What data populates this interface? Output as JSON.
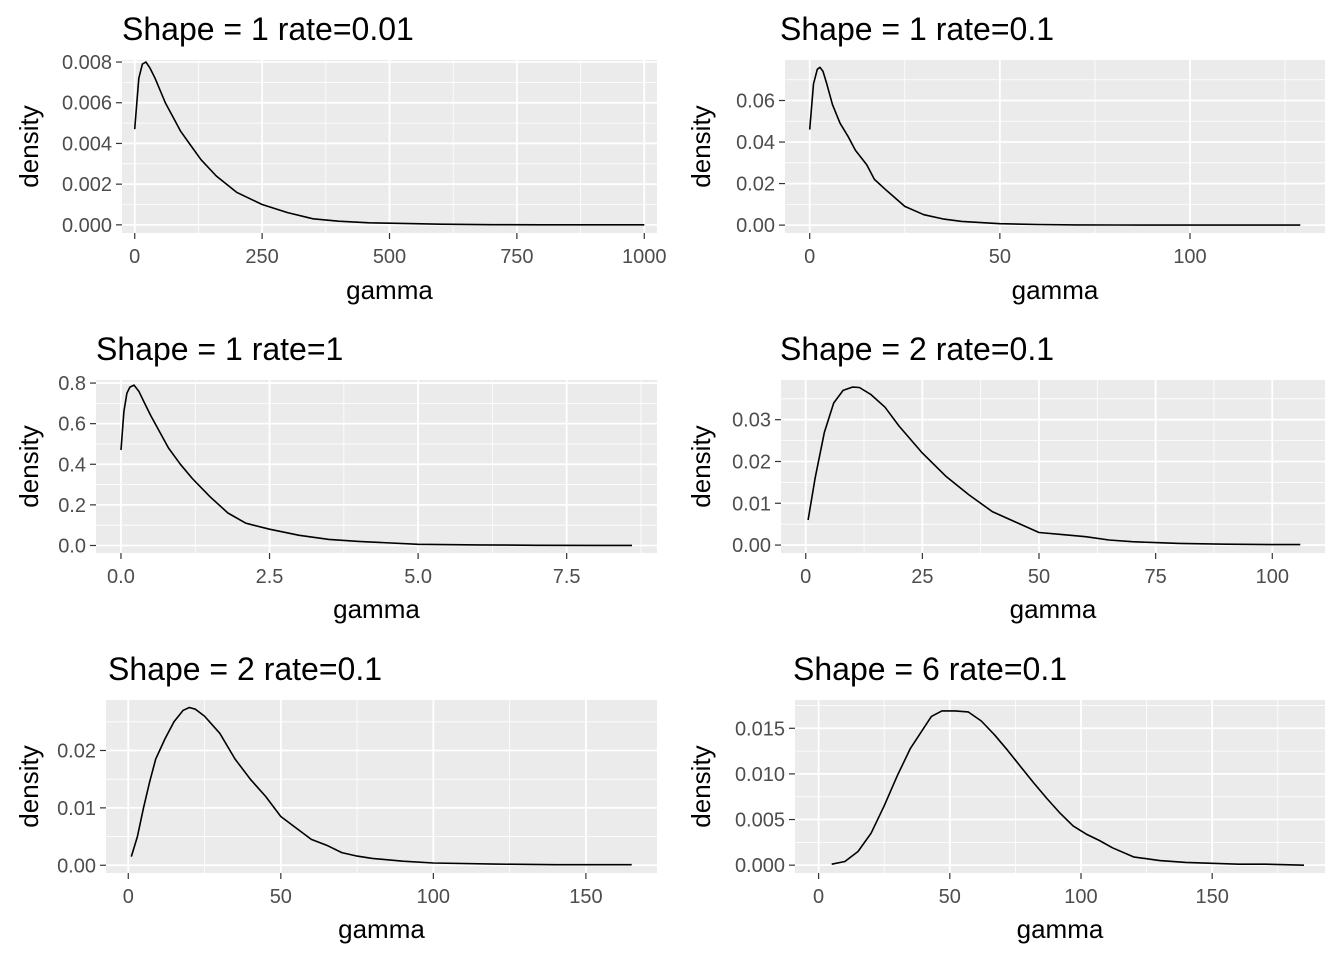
{
  "chart_data": [
    {
      "type": "line",
      "title": "Shape = 1 rate=0.01",
      "xlabel": "gamma",
      "ylabel": "density",
      "xlim": [
        -25,
        1025
      ],
      "ylim": [
        -0.0004,
        0.0081
      ],
      "xticks": [
        0,
        250,
        500,
        750,
        1000
      ],
      "xtick_labels": [
        "0",
        "250",
        "500",
        "750",
        "1000"
      ],
      "yticks": [
        0,
        0.002,
        0.004,
        0.006,
        0.008
      ],
      "ytick_labels": [
        "0.000",
        "0.002",
        "0.004",
        "0.006",
        "0.008"
      ],
      "grid": true,
      "series": [
        {
          "x": [
            0,
            8,
            15,
            22,
            30,
            40,
            50,
            60,
            75,
            90,
            110,
            130,
            160,
            200,
            250,
            300,
            350,
            400,
            460,
            500,
            600,
            700,
            800,
            900,
            1000
          ],
          "y": [
            0.0047,
            0.0072,
            0.0079,
            0.008,
            0.0077,
            0.0072,
            0.0066,
            0.006,
            0.0053,
            0.0046,
            0.0039,
            0.0032,
            0.0024,
            0.0016,
            0.001,
            0.0006,
            0.0003,
            0.00018,
            0.0001,
            8e-05,
            3e-05,
            1e-05,
            5e-06,
            3e-06,
            1e-06
          ]
        }
      ]
    },
    {
      "type": "line",
      "title": "Shape = 1 rate=0.1",
      "xlabel": "gamma",
      "ylabel": "density",
      "xlim": [
        -6.5,
        135.5
      ],
      "ylim": [
        -0.0038,
        0.0795
      ],
      "xticks": [
        0,
        50,
        100
      ],
      "xtick_labels": [
        "0",
        "50",
        "100"
      ],
      "yticks": [
        0,
        0.02,
        0.04,
        0.06
      ],
      "ytick_labels": [
        "0.00",
        "0.02",
        "0.04",
        "0.06"
      ],
      "grid": true,
      "series": [
        {
          "x": [
            0,
            1,
            2,
            2.7,
            3.5,
            4.5,
            6,
            8,
            10,
            12,
            15,
            17,
            20,
            25,
            30,
            35,
            40,
            50,
            60,
            70,
            80,
            100,
            129
          ],
          "y": [
            0.046,
            0.068,
            0.075,
            0.076,
            0.074,
            0.068,
            0.058,
            0.049,
            0.043,
            0.036,
            0.029,
            0.022,
            0.017,
            0.009,
            0.005,
            0.003,
            0.0018,
            0.0007,
            0.0003,
            0.0001,
            5e-05,
            1e-05,
            0.0
          ]
        }
      ]
    },
    {
      "type": "line",
      "title": "Shape = 1 rate=1",
      "xlabel": "gamma",
      "ylabel": "density",
      "xlim": [
        -0.42,
        9.02
      ],
      "ylim": [
        -0.037,
        0.815
      ],
      "xticks": [
        0,
        2.5,
        5,
        7.5
      ],
      "xtick_labels": [
        "0.0",
        "2.5",
        "5.0",
        "7.5"
      ],
      "yticks": [
        0,
        0.2,
        0.4,
        0.6,
        0.8
      ],
      "ytick_labels": [
        "0.0",
        "0.2",
        "0.4",
        "0.6",
        "0.8"
      ],
      "grid": true,
      "series": [
        {
          "x": [
            0,
            0.05,
            0.1,
            0.15,
            0.22,
            0.3,
            0.4,
            0.5,
            0.65,
            0.8,
            1.0,
            1.2,
            1.5,
            1.8,
            2.1,
            2.5,
            3.0,
            3.5,
            4.0,
            5.0,
            6.0,
            7.0,
            8.0,
            8.6
          ],
          "y": [
            0.47,
            0.66,
            0.75,
            0.78,
            0.79,
            0.76,
            0.7,
            0.64,
            0.56,
            0.48,
            0.4,
            0.33,
            0.24,
            0.16,
            0.11,
            0.08,
            0.05,
            0.03,
            0.02,
            0.006,
            0.003,
            0.001,
            0.0005,
            0.0003
          ]
        }
      ]
    },
    {
      "type": "line",
      "title": "Shape = 2 rate=0.1",
      "xlabel": "gamma",
      "ylabel": "density",
      "xlim": [
        -5.3,
        111.3
      ],
      "ylim": [
        -0.0019,
        0.0395
      ],
      "xticks": [
        0,
        25,
        50,
        75,
        100
      ],
      "xtick_labels": [
        "0",
        "25",
        "50",
        "75",
        "100"
      ],
      "yticks": [
        0,
        0.01,
        0.02,
        0.03
      ],
      "ytick_labels": [
        "0.00",
        "0.01",
        "0.02",
        "0.03"
      ],
      "grid": true,
      "series": [
        {
          "x": [
            0.5,
            2,
            4,
            6,
            8,
            10,
            11.5,
            14,
            17,
            20,
            25,
            30,
            35,
            40,
            45,
            50,
            55,
            60,
            65,
            70,
            75,
            80,
            90,
            100,
            106
          ],
          "y": [
            0.006,
            0.016,
            0.027,
            0.034,
            0.037,
            0.0378,
            0.0377,
            0.036,
            0.033,
            0.0285,
            0.022,
            0.0165,
            0.012,
            0.008,
            0.0055,
            0.003,
            0.0025,
            0.002,
            0.0012,
            0.0008,
            0.0006,
            0.0004,
            0.0002,
            0.0001,
            0.0001
          ]
        }
      ]
    },
    {
      "type": "line",
      "title": "Shape = 2 rate=0.1",
      "xlabel": "gamma",
      "ylabel": "density",
      "xlim": [
        -7.3,
        173.3
      ],
      "ylim": [
        -0.00135,
        0.0288
      ],
      "xticks": [
        0,
        50,
        100,
        150
      ],
      "xtick_labels": [
        "0",
        "50",
        "100",
        "150"
      ],
      "yticks": [
        0,
        0.01,
        0.02
      ],
      "ytick_labels": [
        "0.00",
        "0.01",
        "0.02"
      ],
      "grid": true,
      "series": [
        {
          "x": [
            1,
            3,
            5,
            7,
            9,
            12,
            15,
            18,
            20,
            22,
            25,
            30,
            35,
            40,
            45,
            50,
            55,
            60,
            65,
            70,
            75,
            80,
            90,
            100,
            120,
            140,
            165
          ],
          "y": [
            0.0015,
            0.005,
            0.01,
            0.0145,
            0.0185,
            0.022,
            0.025,
            0.027,
            0.0275,
            0.0272,
            0.026,
            0.023,
            0.0185,
            0.015,
            0.012,
            0.0085,
            0.0065,
            0.0045,
            0.0035,
            0.0022,
            0.0016,
            0.0012,
            0.0007,
            0.0004,
            0.0002,
            0.0001,
            0.0001
          ]
        }
      ]
    },
    {
      "type": "line",
      "title": "Shape = 6 rate=0.1",
      "xlabel": "gamma",
      "ylabel": "density",
      "xlim": [
        -9.0,
        193.0
      ],
      "ylim": [
        -0.00086,
        0.0181
      ],
      "xticks": [
        0,
        50,
        100,
        150
      ],
      "xtick_labels": [
        "0",
        "50",
        "100",
        "150"
      ],
      "yticks": [
        0,
        0.005,
        0.01,
        0.015
      ],
      "ytick_labels": [
        "0.000",
        "0.005",
        "0.010",
        "0.015"
      ],
      "grid": true,
      "series": [
        {
          "x": [
            5,
            10,
            15,
            20,
            25,
            30,
            35,
            40,
            43,
            47,
            52,
            57,
            62,
            67,
            72,
            77,
            82,
            87,
            92,
            97,
            102,
            107,
            112,
            120,
            130,
            140,
            150,
            160,
            170,
            185
          ],
          "y": [
            0.0001,
            0.0004,
            0.0015,
            0.0035,
            0.0065,
            0.0098,
            0.0128,
            0.015,
            0.0163,
            0.0169,
            0.0169,
            0.0168,
            0.0158,
            0.0143,
            0.0126,
            0.0108,
            0.009,
            0.0073,
            0.0057,
            0.0043,
            0.0034,
            0.0027,
            0.0019,
            0.0009,
            0.0005,
            0.0003,
            0.0002,
            0.0001,
            0.0001,
            0.0
          ]
        }
      ]
    }
  ]
}
